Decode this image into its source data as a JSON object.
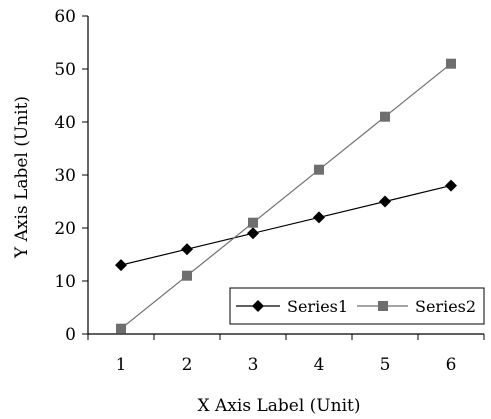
{
  "chart_data": {
    "type": "line",
    "xlabel": "X Axis Label (Unit)",
    "ylabel": "Y Axis Label (Unit)",
    "x": [
      1,
      2,
      3,
      4,
      5,
      6
    ],
    "xlim": [
      0.5,
      6.5
    ],
    "ylim": [
      0,
      60
    ],
    "yticks": [
      0,
      10,
      20,
      30,
      40,
      50,
      60
    ],
    "grid": false,
    "legend": "bottom-right",
    "series": [
      {
        "name": "Series1",
        "marker": "diamond",
        "color": "#000000",
        "values": [
          13,
          16,
          19,
          22,
          25,
          28
        ]
      },
      {
        "name": "Series2",
        "marker": "square",
        "color": "#6e6e6e",
        "values": [
          1,
          11,
          21,
          31,
          41,
          51
        ]
      }
    ]
  }
}
